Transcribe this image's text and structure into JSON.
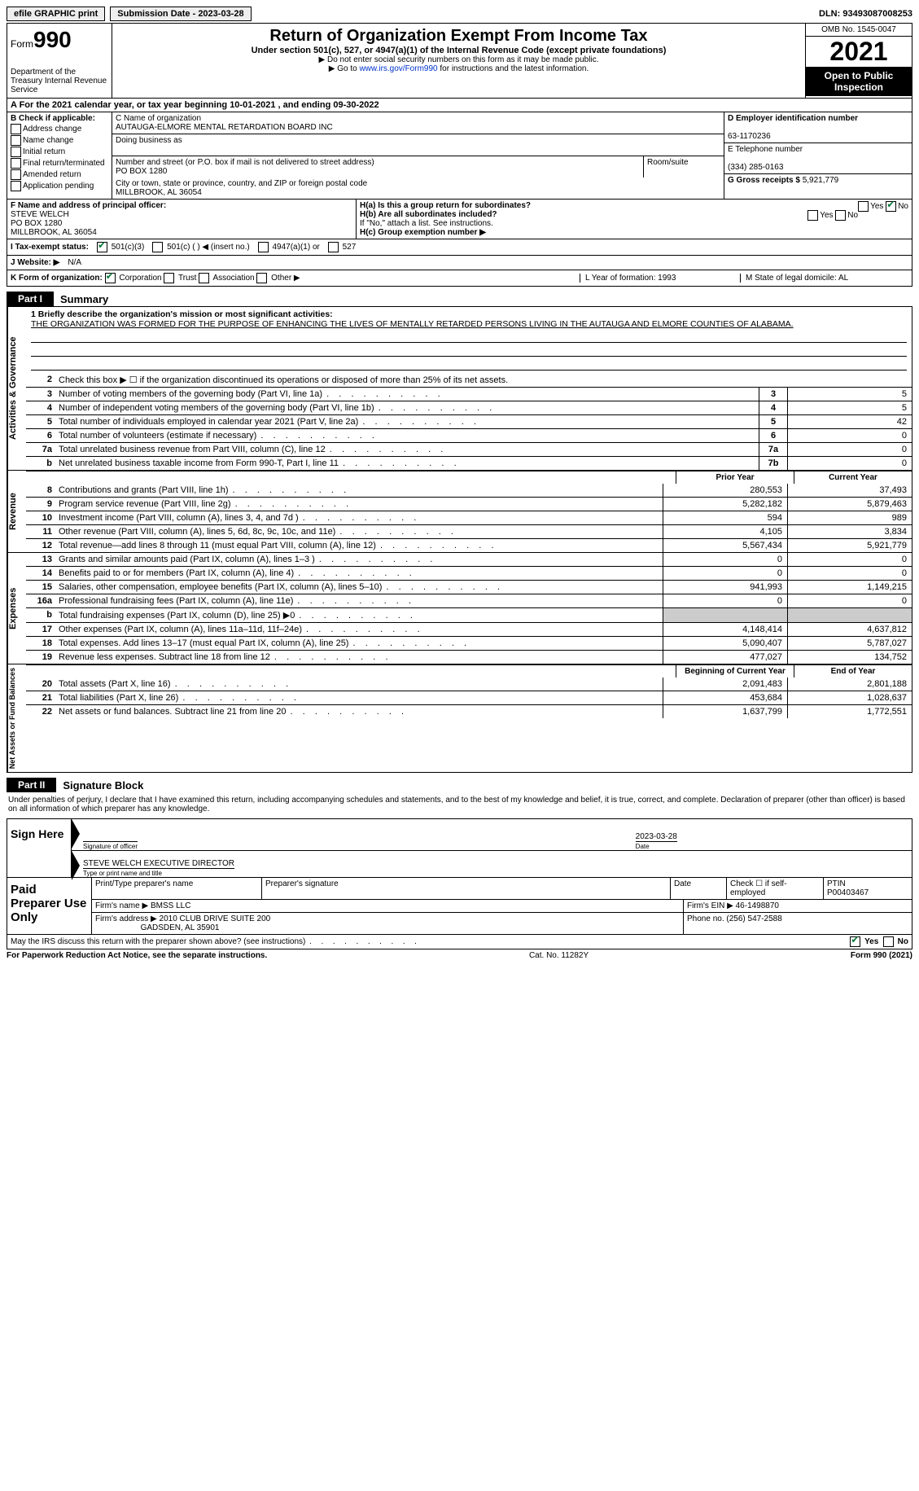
{
  "topbar": {
    "efile_label": "efile GRAPHIC print",
    "submission_label": "Submission Date - 2023-03-28",
    "dln_label": "DLN: 93493087008253"
  },
  "header": {
    "form_word": "Form",
    "form_num": "990",
    "dept": "Department of the Treasury\nInternal Revenue Service",
    "title": "Return of Organization Exempt From Income Tax",
    "subtitle": "Under section 501(c), 527, or 4947(a)(1) of the Internal Revenue Code (except private foundations)",
    "note1": "▶ Do not enter social security numbers on this form as it may be made public.",
    "note2_pre": "▶ Go to ",
    "note2_link": "www.irs.gov/Form990",
    "note2_post": " for instructions and the latest information.",
    "omb": "OMB No. 1545-0047",
    "year": "2021",
    "inspection": "Open to Public Inspection"
  },
  "rowA": "A For the 2021 calendar year, or tax year beginning 10-01-2021   , and ending 09-30-2022",
  "colB": {
    "header": "B Check if applicable:",
    "opts": [
      "Address change",
      "Name change",
      "Initial return",
      "Final return/terminated",
      "Amended return",
      "Application pending"
    ]
  },
  "colC": {
    "name_label": "C Name of organization",
    "name": "AUTAUGA-ELMORE MENTAL RETARDATION BOARD INC",
    "dba_label": "Doing business as",
    "addr_label": "Number and street (or P.O. box if mail is not delivered to street address)",
    "room_label": "Room/suite",
    "addr": "PO BOX 1280",
    "city_label": "City or town, state or province, country, and ZIP or foreign postal code",
    "city": "MILLBROOK, AL  36054"
  },
  "colDE": {
    "d_label": "D Employer identification number",
    "ein": "63-1170236",
    "e_label": "E Telephone number",
    "phone": "(334) 285-0163",
    "g_label": "G Gross receipts $",
    "gross": "5,921,779"
  },
  "f": {
    "label": "F Name and address of principal officer:",
    "name": "STEVE WELCH",
    "addr1": "PO BOX 1280",
    "addr2": "MILLBROOK, AL  36054"
  },
  "h": {
    "ha": "H(a)  Is this a group return for subordinates?",
    "hb": "H(b)  Are all subordinates included?",
    "hb_note": "If \"No,\" attach a list. See instructions.",
    "hc": "H(c)  Group exemption number ▶",
    "yes": "Yes",
    "no": "No"
  },
  "status": {
    "label": "I  Tax-exempt status:",
    "o1": "501(c)(3)",
    "o2": "501(c) (  ) ◀ (insert no.)",
    "o3": "4947(a)(1) or",
    "o4": "527"
  },
  "website": {
    "label": "J  Website: ▶",
    "val": "N/A"
  },
  "krow": {
    "k": "K Form of organization:",
    "corp": "Corporation",
    "trust": "Trust",
    "assoc": "Association",
    "other": "Other ▶",
    "l": "L Year of formation: 1993",
    "m": "M State of legal domicile: AL"
  },
  "part1": {
    "tab": "Part I",
    "title": "Summary"
  },
  "mission": {
    "q": "1  Briefly describe the organization's mission or most significant activities:",
    "text": "THE ORGANIZATION WAS FORMED FOR THE PURPOSE OF ENHANCING THE LIVES OF MENTALLY RETARDED PERSONS LIVING IN THE AUTAUGA AND ELMORE COUNTIES OF ALABAMA."
  },
  "lines_gov": [
    {
      "n": "2",
      "d": "Check this box ▶ ☐  if the organization discontinued its operations or disposed of more than 25% of its net assets.",
      "box": "",
      "v": ""
    },
    {
      "n": "3",
      "d": "Number of voting members of the governing body (Part VI, line 1a)",
      "box": "3",
      "v": "5"
    },
    {
      "n": "4",
      "d": "Number of independent voting members of the governing body (Part VI, line 1b)",
      "box": "4",
      "v": "5"
    },
    {
      "n": "5",
      "d": "Total number of individuals employed in calendar year 2021 (Part V, line 2a)",
      "box": "5",
      "v": "42"
    },
    {
      "n": "6",
      "d": "Total number of volunteers (estimate if necessary)",
      "box": "6",
      "v": "0"
    },
    {
      "n": "7a",
      "d": "Total unrelated business revenue from Part VIII, column (C), line 12",
      "box": "7a",
      "v": "0"
    },
    {
      "n": "b",
      "d": "Net unrelated business taxable income from Form 990-T, Part I, line 11",
      "box": "7b",
      "v": "0"
    }
  ],
  "col_headers": {
    "prior": "Prior Year",
    "current": "Current Year",
    "boy": "Beginning of Current Year",
    "eoy": "End of Year"
  },
  "lines_rev": [
    {
      "n": "8",
      "d": "Contributions and grants (Part VIII, line 1h)",
      "p": "280,553",
      "c": "37,493"
    },
    {
      "n": "9",
      "d": "Program service revenue (Part VIII, line 2g)",
      "p": "5,282,182",
      "c": "5,879,463"
    },
    {
      "n": "10",
      "d": "Investment income (Part VIII, column (A), lines 3, 4, and 7d )",
      "p": "594",
      "c": "989"
    },
    {
      "n": "11",
      "d": "Other revenue (Part VIII, column (A), lines 5, 6d, 8c, 9c, 10c, and 11e)",
      "p": "4,105",
      "c": "3,834"
    },
    {
      "n": "12",
      "d": "Total revenue—add lines 8 through 11 (must equal Part VIII, column (A), line 12)",
      "p": "5,567,434",
      "c": "5,921,779"
    }
  ],
  "lines_exp": [
    {
      "n": "13",
      "d": "Grants and similar amounts paid (Part IX, column (A), lines 1–3 )",
      "p": "0",
      "c": "0"
    },
    {
      "n": "14",
      "d": "Benefits paid to or for members (Part IX, column (A), line 4)",
      "p": "0",
      "c": "0"
    },
    {
      "n": "15",
      "d": "Salaries, other compensation, employee benefits (Part IX, column (A), lines 5–10)",
      "p": "941,993",
      "c": "1,149,215"
    },
    {
      "n": "16a",
      "d": "Professional fundraising fees (Part IX, column (A), line 11e)",
      "p": "0",
      "c": "0"
    },
    {
      "n": "b",
      "d": "Total fundraising expenses (Part IX, column (D), line 25) ▶0",
      "p": "shade",
      "c": "shade"
    },
    {
      "n": "17",
      "d": "Other expenses (Part IX, column (A), lines 11a–11d, 11f–24e)",
      "p": "4,148,414",
      "c": "4,637,812"
    },
    {
      "n": "18",
      "d": "Total expenses. Add lines 13–17 (must equal Part IX, column (A), line 25)",
      "p": "5,090,407",
      "c": "5,787,027"
    },
    {
      "n": "19",
      "d": "Revenue less expenses. Subtract line 18 from line 12",
      "p": "477,027",
      "c": "134,752"
    }
  ],
  "lines_na": [
    {
      "n": "20",
      "d": "Total assets (Part X, line 16)",
      "p": "2,091,483",
      "c": "2,801,188"
    },
    {
      "n": "21",
      "d": "Total liabilities (Part X, line 26)",
      "p": "453,684",
      "c": "1,028,637"
    },
    {
      "n": "22",
      "d": "Net assets or fund balances. Subtract line 21 from line 20",
      "p": "1,637,799",
      "c": "1,772,551"
    }
  ],
  "part2": {
    "tab": "Part II",
    "title": "Signature Block"
  },
  "sig": {
    "intro": "Under penalties of perjury, I declare that I have examined this return, including accompanying schedules and statements, and to the best of my knowledge and belief, it is true, correct, and complete. Declaration of preparer (other than officer) is based on all information of which preparer has any knowledge.",
    "sign_here": "Sign Here",
    "sig_officer": "Signature of officer",
    "date_label": "Date",
    "date": "2023-03-28",
    "name_title": "STEVE WELCH  EXECUTIVE DIRECTOR",
    "name_label": "Type or print name and title"
  },
  "prep": {
    "label": "Paid Preparer Use Only",
    "h1": "Print/Type preparer's name",
    "h2": "Preparer's signature",
    "h3": "Date",
    "h4_pre": "Check ☐ if self-employed",
    "h5": "PTIN",
    "ptin": "P00403467",
    "firm_name_l": "Firm's name   ▶",
    "firm_name": "BMSS LLC",
    "firm_ein_l": "Firm's EIN ▶",
    "firm_ein": "46-1498870",
    "firm_addr_l": "Firm's address ▶",
    "firm_addr1": "2010 CLUB DRIVE SUITE 200",
    "firm_addr2": "GADSDEN, AL  35901",
    "phone_l": "Phone no.",
    "phone": "(256) 547-2588"
  },
  "discuss": {
    "q": "May the IRS discuss this return with the preparer shown above? (see instructions)",
    "yes": "Yes",
    "no": "No"
  },
  "footer": {
    "left": "For Paperwork Reduction Act Notice, see the separate instructions.",
    "mid": "Cat. No. 11282Y",
    "right": "Form 990 (2021)"
  },
  "side": {
    "gov": "Activities & Governance",
    "rev": "Revenue",
    "exp": "Expenses",
    "na": "Net Assets or Fund Balances"
  }
}
